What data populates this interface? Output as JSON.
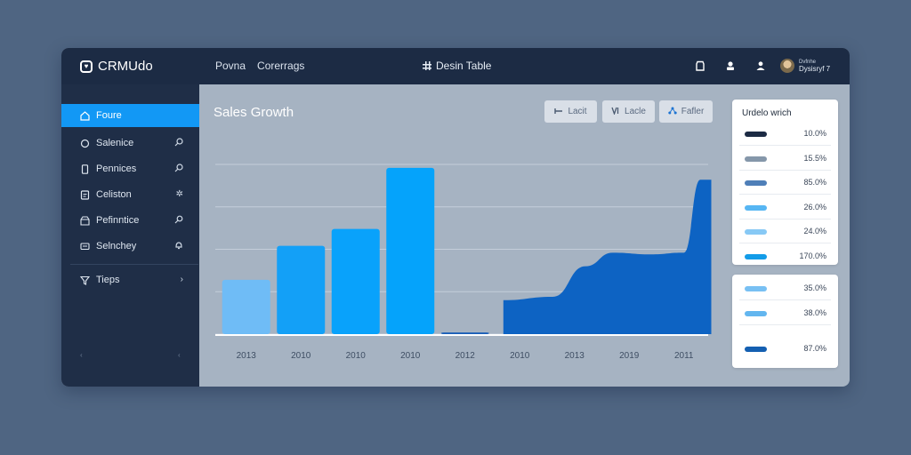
{
  "app": {
    "brand": "CRMUdo",
    "logo_icon": "heart-icon"
  },
  "topnav": [
    {
      "label": "Povna"
    },
    {
      "label": "Corerrags"
    }
  ],
  "center_title": "Desin Table",
  "user": {
    "line1": "Dvfnhe",
    "line2": "Dysisryf 7"
  },
  "sidebar": {
    "items": [
      {
        "label": "Foure",
        "icon": "home-icon",
        "active": true
      },
      {
        "label": "Salenice",
        "icon": "circle-icon",
        "trail_icon": "search-icon"
      },
      {
        "label": "Pennices",
        "icon": "phone-icon",
        "trail_icon": "search-icon"
      },
      {
        "label": "Celiston",
        "icon": "card-icon",
        "trail_icon": "settings-icon"
      },
      {
        "label": "Pefinntice",
        "icon": "archive-icon",
        "trail_icon": "pin-icon"
      },
      {
        "label": "Selnchey",
        "icon": "monitor-icon",
        "trail_icon": "bell-icon"
      }
    ],
    "tips": {
      "label": "Tieps",
      "icon": "filter-icon",
      "trail": "›"
    },
    "footer_left": "‹",
    "footer_right": "‹"
  },
  "main": {
    "title": "Sales Growth",
    "toolbar": [
      {
        "label": "Lacit",
        "icon": "bar-icon"
      },
      {
        "label": "Lacle",
        "icon": "v-icon"
      },
      {
        "label": "Fafler",
        "icon": "share-icon"
      }
    ]
  },
  "chart_data": {
    "type": "bar",
    "title": "Sales Growth",
    "categories": [
      "2013",
      "2010",
      "2010",
      "2010",
      "2012",
      "2010",
      "2013",
      "2019",
      "2011"
    ],
    "bars": [
      {
        "category_index": 0,
        "value": 32,
        "color": "#6fbcf6"
      },
      {
        "category_index": 1,
        "value": 52,
        "color": "#13a0f7"
      },
      {
        "category_index": 2,
        "value": 62,
        "color": "#09a2fb"
      },
      {
        "category_index": 3,
        "value": 98,
        "color": "#05a3fb"
      },
      {
        "category_index": 4,
        "value": 1,
        "color": "#1a5fb8"
      }
    ],
    "area": {
      "color": "#0d63c3",
      "points": [
        {
          "x": 4.7,
          "y": 20
        },
        {
          "x": 5.6,
          "y": 22
        },
        {
          "x": 6.2,
          "y": 40
        },
        {
          "x": 6.7,
          "y": 48
        },
        {
          "x": 7.4,
          "y": 47
        },
        {
          "x": 8.0,
          "y": 48
        },
        {
          "x": 8.3,
          "y": 91
        },
        {
          "x": 8.5,
          "y": 91
        }
      ]
    },
    "xrange": [
      -0.5,
      8.5
    ],
    "ylim": [
      0,
      100
    ],
    "gridlines": [
      0,
      25,
      50,
      75,
      100
    ],
    "grid": true
  },
  "legend_panel_1": {
    "title": "Urdelo wrich",
    "rows": [
      {
        "color": "#1c2b44",
        "value": "10.0%"
      },
      {
        "color": "#8597aa",
        "value": "15.5%"
      },
      {
        "color": "#4f7fb8",
        "value": "85.0%"
      },
      {
        "color": "#57b6f3",
        "value": "26.0%"
      },
      {
        "color": "#87c9f5",
        "value": "24.0%"
      },
      {
        "color": "#139ce8",
        "value": "170.0%"
      }
    ]
  },
  "legend_panel_2": {
    "rows": [
      {
        "color": "#78c0f3",
        "value": "35.0%"
      },
      {
        "color": "#63b6ef",
        "value": "38.0%"
      },
      {
        "color": "#145fb1",
        "value": "87.0%"
      }
    ]
  }
}
